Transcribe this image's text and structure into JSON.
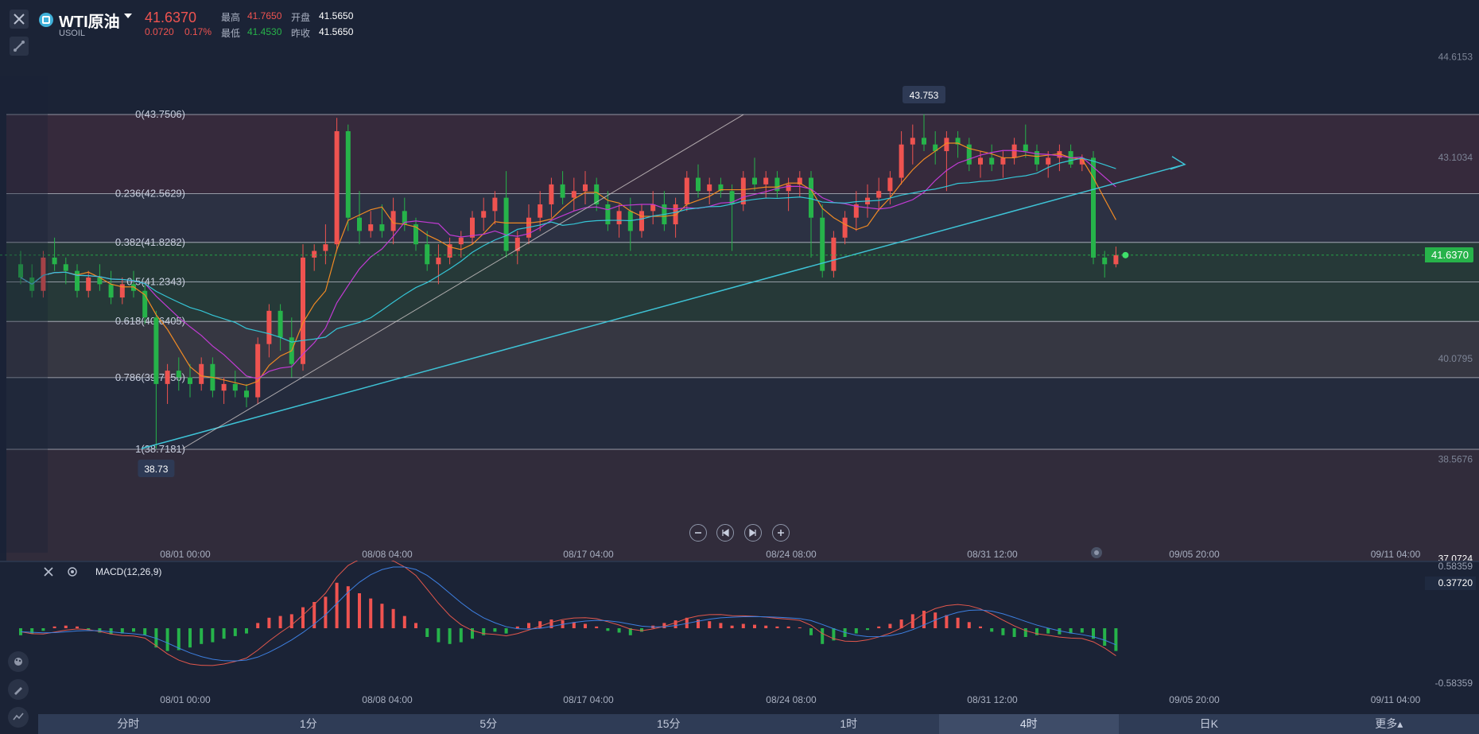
{
  "header": {
    "symbol_name": "WTI原油",
    "symbol_code": "USOIL",
    "last_price": "41.6370",
    "change": "0.0720",
    "change_pct": "0.17%",
    "high_label": "最高",
    "high_value": "41.7650",
    "open_label": "开盘",
    "open_value": "41.5650",
    "low_label": "最低",
    "low_value": "41.4530",
    "prev_close_label": "昨收",
    "prev_close_value": "41.5650"
  },
  "colors": {
    "up": "#ef5350",
    "down": "#26b34a",
    "ma5": "#f08a24",
    "ma10": "#c23bd4",
    "ma20": "#35c5d6",
    "trendline": "#3ec3d6",
    "background": "#1b2336"
  },
  "chart_data": [
    {
      "type": "candlestick",
      "price_axis_labels": [
        "44.6153",
        "43.1034",
        "40.0795",
        "38.5676",
        "37.0724"
      ],
      "x_tick_labels": [
        "08/01 00:00",
        "08/08 04:00",
        "08/17 04:00",
        "08/24 08:00",
        "08/31 12:00",
        "09/05 20:00",
        "09/11 04:00"
      ],
      "current_price_tag": "41.6370",
      "high_marker": "43.753",
      "low_marker": "38.73",
      "fibonacci_levels": [
        {
          "label": "0(43.7506)",
          "price": 43.7506
        },
        {
          "label": "0.236(42.5629)",
          "price": 42.5629
        },
        {
          "label": "0.382(41.8282)",
          "price": 41.8282
        },
        {
          "label": "0.5(41.2343)",
          "price": 41.2343
        },
        {
          "label": "0.618(40.6405)",
          "price": 40.6405
        },
        {
          "label": "0.786(39.7950)",
          "price": 39.795
        },
        {
          "label": "1(38.7181)",
          "price": 38.7181
        }
      ],
      "ohlc": [
        [
          41.5,
          41.7,
          41.2,
          41.3
        ],
        [
          41.3,
          41.5,
          41.0,
          41.1
        ],
        [
          41.1,
          41.7,
          41.0,
          41.6
        ],
        [
          41.6,
          41.9,
          41.4,
          41.5
        ],
        [
          41.5,
          41.6,
          41.2,
          41.4
        ],
        [
          41.4,
          41.5,
          41.0,
          41.1
        ],
        [
          41.1,
          41.4,
          41.0,
          41.3
        ],
        [
          41.3,
          41.5,
          41.1,
          41.2
        ],
        [
          41.2,
          41.4,
          40.9,
          41.0
        ],
        [
          41.0,
          41.3,
          40.9,
          41.2
        ],
        [
          41.2,
          41.4,
          41.0,
          41.1
        ],
        [
          41.1,
          41.2,
          40.6,
          40.7
        ],
        [
          40.7,
          40.8,
          38.73,
          39.7
        ],
        [
          39.7,
          40.0,
          39.4,
          39.9
        ],
        [
          39.9,
          40.1,
          39.6,
          39.8
        ],
        [
          39.8,
          40.0,
          39.5,
          39.7
        ],
        [
          39.7,
          40.1,
          39.6,
          40.0
        ],
        [
          40.0,
          40.1,
          39.5,
          39.6
        ],
        [
          39.6,
          39.8,
          39.4,
          39.7
        ],
        [
          39.7,
          39.9,
          39.5,
          39.6
        ],
        [
          39.6,
          39.7,
          39.35,
          39.5
        ],
        [
          39.5,
          40.4,
          39.4,
          40.3
        ],
        [
          40.3,
          40.9,
          40.1,
          40.8
        ],
        [
          40.8,
          40.9,
          40.2,
          40.4
        ],
        [
          40.4,
          40.7,
          39.8,
          40.0
        ],
        [
          40.0,
          41.8,
          39.9,
          41.6
        ],
        [
          41.6,
          41.8,
          41.4,
          41.7
        ],
        [
          41.7,
          42.1,
          41.5,
          41.8
        ],
        [
          41.8,
          43.7,
          41.7,
          43.5
        ],
        [
          43.5,
          43.6,
          42.0,
          42.2
        ],
        [
          42.2,
          42.6,
          41.8,
          42.0
        ],
        [
          42.0,
          42.3,
          41.9,
          42.1
        ],
        [
          42.1,
          42.4,
          41.9,
          42.0
        ],
        [
          42.0,
          42.5,
          41.8,
          42.3
        ],
        [
          42.3,
          42.5,
          42.0,
          42.1
        ],
        [
          42.1,
          42.2,
          41.7,
          41.8
        ],
        [
          41.8,
          42.0,
          41.4,
          41.5
        ],
        [
          41.5,
          41.8,
          41.2,
          41.6
        ],
        [
          41.6,
          41.9,
          41.5,
          41.8
        ],
        [
          41.8,
          42.0,
          41.6,
          41.9
        ],
        [
          41.9,
          42.3,
          41.8,
          42.2
        ],
        [
          42.2,
          42.5,
          42.0,
          42.3
        ],
        [
          42.3,
          42.6,
          42.1,
          42.5
        ],
        [
          42.5,
          42.9,
          41.6,
          41.7
        ],
        [
          41.7,
          42.0,
          41.5,
          41.9
        ],
        [
          41.9,
          42.4,
          41.8,
          42.2
        ],
        [
          42.2,
          42.6,
          42.0,
          42.4
        ],
        [
          42.4,
          42.8,
          42.2,
          42.7
        ],
        [
          42.7,
          42.9,
          42.4,
          42.5
        ],
        [
          42.5,
          42.8,
          42.3,
          42.6
        ],
        [
          42.6,
          42.9,
          42.4,
          42.7
        ],
        [
          42.7,
          42.8,
          42.3,
          42.4
        ],
        [
          42.4,
          42.6,
          42.0,
          42.1
        ],
        [
          42.1,
          42.4,
          41.9,
          42.3
        ],
        [
          42.3,
          42.5,
          41.7,
          42.0
        ],
        [
          42.0,
          42.4,
          41.9,
          42.3
        ],
        [
          42.3,
          42.6,
          42.1,
          42.4
        ],
        [
          42.4,
          42.6,
          42.0,
          42.1
        ],
        [
          42.1,
          42.5,
          41.9,
          42.4
        ],
        [
          42.4,
          42.9,
          42.3,
          42.8
        ],
        [
          42.8,
          43.0,
          42.5,
          42.6
        ],
        [
          42.6,
          42.8,
          42.4,
          42.7
        ],
        [
          42.7,
          42.8,
          42.5,
          42.6
        ],
        [
          42.6,
          42.7,
          41.7,
          42.4
        ],
        [
          42.4,
          42.9,
          42.3,
          42.8
        ],
        [
          42.8,
          43.1,
          42.6,
          42.7
        ],
        [
          42.7,
          42.9,
          42.5,
          42.8
        ],
        [
          42.8,
          42.9,
          42.5,
          42.6
        ],
        [
          42.6,
          42.8,
          42.3,
          42.7
        ],
        [
          42.7,
          42.9,
          42.5,
          42.8
        ],
        [
          42.8,
          42.9,
          41.6,
          42.2
        ],
        [
          42.2,
          42.4,
          41.3,
          41.4
        ],
        [
          41.4,
          42.0,
          41.3,
          41.9
        ],
        [
          41.9,
          42.3,
          41.8,
          42.2
        ],
        [
          42.2,
          42.6,
          42.0,
          42.4
        ],
        [
          42.4,
          42.7,
          42.2,
          42.5
        ],
        [
          42.5,
          42.8,
          42.3,
          42.6
        ],
        [
          42.6,
          42.9,
          42.4,
          42.8
        ],
        [
          42.8,
          43.5,
          42.7,
          43.3
        ],
        [
          43.3,
          43.6,
          43.0,
          43.4
        ],
        [
          43.4,
          43.753,
          43.2,
          43.3
        ],
        [
          43.3,
          43.5,
          43.0,
          43.2
        ],
        [
          43.2,
          43.5,
          42.6,
          43.4
        ],
        [
          43.4,
          43.5,
          43.1,
          43.3
        ],
        [
          43.3,
          43.4,
          42.9,
          43.0
        ],
        [
          43.0,
          43.2,
          42.8,
          43.1
        ],
        [
          43.1,
          43.3,
          42.9,
          43.0
        ],
        [
          43.0,
          43.2,
          42.8,
          43.1
        ],
        [
          43.1,
          43.4,
          43.0,
          43.3
        ],
        [
          43.3,
          43.6,
          43.1,
          43.2
        ],
        [
          43.2,
          43.3,
          42.9,
          43.0
        ],
        [
          43.0,
          43.2,
          42.8,
          43.1
        ],
        [
          43.1,
          43.3,
          42.9,
          43.2
        ],
        [
          43.2,
          43.3,
          42.95,
          43.0
        ],
        [
          43.0,
          43.15,
          42.9,
          43.1
        ],
        [
          43.1,
          43.2,
          41.5,
          41.6
        ],
        [
          41.6,
          41.7,
          41.3,
          41.5
        ],
        [
          41.5,
          41.765,
          41.453,
          41.637
        ]
      ]
    },
    {
      "type": "bar",
      "title": "MACD(12,26,9)",
      "axis_labels": [
        "0.58359",
        "0.37720",
        "-0.58359"
      ],
      "current_value_tag": "0.37720",
      "x_tick_labels": [
        "08/01 00:00",
        "08/08 04:00",
        "08/17 04:00",
        "08/24 08:00",
        "08/31 12:00",
        "09/05 20:00",
        "09/11 04:00"
      ],
      "histogram": [
        -0.08,
        -0.06,
        -0.03,
        0.02,
        0.03,
        0.02,
        -0.02,
        -0.05,
        -0.07,
        -0.06,
        -0.04,
        -0.08,
        -0.22,
        -0.26,
        -0.25,
        -0.22,
        -0.18,
        -0.16,
        -0.12,
        -0.09,
        -0.06,
        0.06,
        0.12,
        0.14,
        0.16,
        0.24,
        0.3,
        0.36,
        0.52,
        0.48,
        0.4,
        0.34,
        0.28,
        0.22,
        0.14,
        0.06,
        -0.1,
        -0.16,
        -0.18,
        -0.16,
        -0.12,
        -0.08,
        -0.04,
        -0.06,
        0.02,
        0.06,
        0.08,
        0.1,
        0.09,
        0.07,
        0.05,
        0.02,
        -0.03,
        -0.05,
        -0.08,
        -0.04,
        0.03,
        0.06,
        0.09,
        0.12,
        0.1,
        0.08,
        0.06,
        0.03,
        0.05,
        0.04,
        0.03,
        0.02,
        0.02,
        0.01,
        -0.08,
        -0.18,
        -0.14,
        -0.1,
        -0.06,
        -0.02,
        0.02,
        0.05,
        0.1,
        0.16,
        0.2,
        0.18,
        0.15,
        0.12,
        0.07,
        0.02,
        -0.04,
        -0.08,
        -0.1,
        -0.1,
        -0.08,
        -0.06,
        -0.07,
        -0.06,
        -0.05,
        -0.12,
        -0.2,
        -0.26
      ]
    }
  ],
  "nav_controls": [
    "zoom-out",
    "prev",
    "next",
    "zoom-in"
  ],
  "timeframes": [
    {
      "label": "分时",
      "active": false
    },
    {
      "label": "1分",
      "active": false
    },
    {
      "label": "5分",
      "active": false
    },
    {
      "label": "15分",
      "active": false
    },
    {
      "label": "1时",
      "active": false
    },
    {
      "label": "4时",
      "active": true
    },
    {
      "label": "日K",
      "active": false
    },
    {
      "label": "更多▴",
      "active": false
    }
  ]
}
